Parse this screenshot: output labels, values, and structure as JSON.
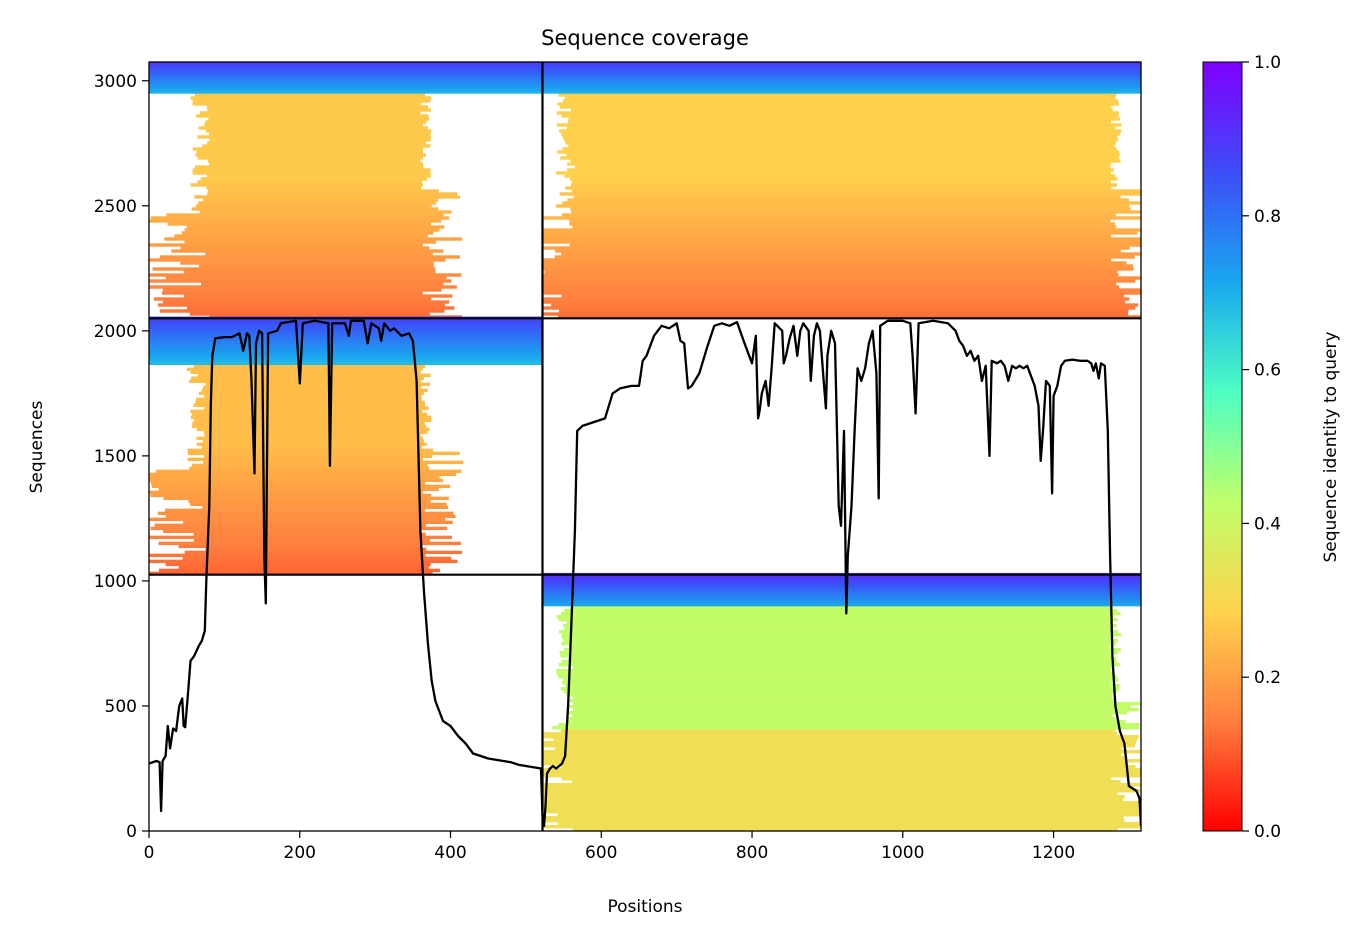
{
  "chart_data": {
    "type": "heatmap",
    "title": "Sequence coverage",
    "xlabel": "Positions",
    "ylabel": "Sequences",
    "xlim": [
      0,
      1316
    ],
    "ylim": [
      0,
      3075
    ],
    "xticks": [
      0,
      200,
      400,
      600,
      800,
      1000,
      1200
    ],
    "yticks": [
      0,
      500,
      1000,
      1500,
      2000,
      2500,
      3000
    ],
    "colorbar": {
      "label": "Sequence identity to query",
      "range": [
        0,
        1
      ],
      "ticks": [
        0.0,
        0.2,
        0.4,
        0.6,
        0.8,
        1.0
      ],
      "colormap": "rainbow_r",
      "colors": [
        "#ff0000",
        "#ff7f3f",
        "#ffd34d",
        "#bfff6b",
        "#4dffc3",
        "#19a7f0",
        "#3d4df8",
        "#7f00ff"
      ]
    },
    "chain_breaks": {
      "x": [
        522
      ],
      "y": [
        1025,
        2050
      ]
    },
    "blocks": [
      {
        "rows": [
          2050,
          3075
        ],
        "x": [
          0,
          522
        ],
        "seq_x": [
          80,
          360
        ],
        "core_identity": 0.27,
        "high_rows": [
          2950,
          3075
        ],
        "high_identity": 0.7
      },
      {
        "rows": [
          2050,
          3075
        ],
        "x": [
          522,
          1316
        ],
        "seq_x": [
          565,
          1275
        ],
        "core_identity": 0.28,
        "high_rows": [
          2950,
          3075
        ],
        "high_identity": 0.7
      },
      {
        "rows": [
          1025,
          2050
        ],
        "x": [
          0,
          522
        ],
        "seq_x": [
          75,
          360
        ],
        "core_identity": 0.25,
        "high_rows": [
          1860,
          2050
        ],
        "high_identity": 0.68
      },
      {
        "rows": [
          0,
          1025
        ],
        "x": [
          522,
          1316
        ],
        "seq_x": [
          565,
          1275
        ],
        "core_identity": 0.42,
        "high_rows": [
          900,
          1025
        ],
        "high_identity": 0.72,
        "low_rows": [
          0,
          400
        ],
        "low_identity": 0.32
      }
    ],
    "coverage_line": [
      [
        0,
        270
      ],
      [
        10,
        280
      ],
      [
        14,
        275
      ],
      [
        16,
        80
      ],
      [
        18,
        280
      ],
      [
        22,
        300
      ],
      [
        25,
        420
      ],
      [
        28,
        330
      ],
      [
        32,
        410
      ],
      [
        36,
        400
      ],
      [
        40,
        500
      ],
      [
        44,
        530
      ],
      [
        46,
        420
      ],
      [
        48,
        415
      ],
      [
        52,
        560
      ],
      [
        55,
        680
      ],
      [
        60,
        700
      ],
      [
        63,
        720
      ],
      [
        66,
        740
      ],
      [
        70,
        760
      ],
      [
        74,
        800
      ],
      [
        76,
        1000
      ],
      [
        80,
        1300
      ],
      [
        82,
        1700
      ],
      [
        84,
        1900
      ],
      [
        88,
        1970
      ],
      [
        100,
        1975
      ],
      [
        110,
        1975
      ],
      [
        120,
        1990
      ],
      [
        125,
        1920
      ],
      [
        130,
        1990
      ],
      [
        133,
        1980
      ],
      [
        136,
        1800
      ],
      [
        140,
        1430
      ],
      [
        142,
        1950
      ],
      [
        146,
        2000
      ],
      [
        150,
        1990
      ],
      [
        153,
        1100
      ],
      [
        155,
        910
      ],
      [
        158,
        1990
      ],
      [
        170,
        2000
      ],
      [
        175,
        2030
      ],
      [
        195,
        2040
      ],
      [
        200,
        1790
      ],
      [
        204,
        2030
      ],
      [
        220,
        2040
      ],
      [
        238,
        2030
      ],
      [
        240,
        1460
      ],
      [
        243,
        2030
      ],
      [
        260,
        2030
      ],
      [
        265,
        1980
      ],
      [
        268,
        2040
      ],
      [
        285,
        2040
      ],
      [
        290,
        1950
      ],
      [
        295,
        2030
      ],
      [
        305,
        2010
      ],
      [
        308,
        1960
      ],
      [
        312,
        2030
      ],
      [
        320,
        2000
      ],
      [
        325,
        2010
      ],
      [
        335,
        1980
      ],
      [
        345,
        1990
      ],
      [
        350,
        1960
      ],
      [
        352,
        1900
      ],
      [
        355,
        1800
      ],
      [
        360,
        1200
      ],
      [
        365,
        950
      ],
      [
        370,
        750
      ],
      [
        375,
        600
      ],
      [
        380,
        520
      ],
      [
        385,
        480
      ],
      [
        390,
        440
      ],
      [
        400,
        420
      ],
      [
        410,
        380
      ],
      [
        420,
        350
      ],
      [
        430,
        310
      ],
      [
        440,
        300
      ],
      [
        450,
        290
      ],
      [
        460,
        285
      ],
      [
        470,
        280
      ],
      [
        480,
        275
      ],
      [
        490,
        265
      ],
      [
        500,
        260
      ],
      [
        510,
        255
      ],
      [
        520,
        250
      ],
      [
        522,
        60
      ],
      [
        524,
        20
      ],
      [
        526,
        100
      ],
      [
        528,
        230
      ],
      [
        532,
        250
      ],
      [
        536,
        260
      ],
      [
        540,
        250
      ],
      [
        548,
        270
      ],
      [
        552,
        300
      ],
      [
        556,
        500
      ],
      [
        560,
        800
      ],
      [
        565,
        1200
      ],
      [
        568,
        1600
      ],
      [
        575,
        1620
      ],
      [
        585,
        1630
      ],
      [
        595,
        1640
      ],
      [
        605,
        1650
      ],
      [
        615,
        1750
      ],
      [
        625,
        1770
      ],
      [
        640,
        1780
      ],
      [
        650,
        1780
      ],
      [
        655,
        1880
      ],
      [
        660,
        1900
      ],
      [
        670,
        1980
      ],
      [
        680,
        2020
      ],
      [
        690,
        2010
      ],
      [
        700,
        2030
      ],
      [
        705,
        1960
      ],
      [
        710,
        1950
      ],
      [
        715,
        1770
      ],
      [
        720,
        1780
      ],
      [
        730,
        1830
      ],
      [
        740,
        1930
      ],
      [
        750,
        2020
      ],
      [
        760,
        2030
      ],
      [
        770,
        2020
      ],
      [
        780,
        2035
      ],
      [
        790,
        1950
      ],
      [
        800,
        1870
      ],
      [
        805,
        1980
      ],
      [
        808,
        1650
      ],
      [
        810,
        1680
      ],
      [
        813,
        1750
      ],
      [
        818,
        1800
      ],
      [
        822,
        1700
      ],
      [
        826,
        1850
      ],
      [
        830,
        2030
      ],
      [
        840,
        2000
      ],
      [
        842,
        1870
      ],
      [
        845,
        1900
      ],
      [
        850,
        1970
      ],
      [
        855,
        2020
      ],
      [
        860,
        1900
      ],
      [
        864,
        2000
      ],
      [
        868,
        2030
      ],
      [
        875,
        2000
      ],
      [
        878,
        1800
      ],
      [
        882,
        1980
      ],
      [
        886,
        2030
      ],
      [
        890,
        2000
      ],
      [
        895,
        1800
      ],
      [
        898,
        1690
      ],
      [
        900,
        1900
      ],
      [
        905,
        2000
      ],
      [
        910,
        1950
      ],
      [
        915,
        1300
      ],
      [
        918,
        1220
      ],
      [
        922,
        1600
      ],
      [
        925,
        870
      ],
      [
        927,
        1100
      ],
      [
        932,
        1300
      ],
      [
        936,
        1600
      ],
      [
        940,
        1850
      ],
      [
        945,
        1800
      ],
      [
        950,
        1850
      ],
      [
        955,
        1950
      ],
      [
        960,
        2000
      ],
      [
        965,
        1830
      ],
      [
        968,
        1330
      ],
      [
        970,
        2020
      ],
      [
        980,
        2040
      ],
      [
        1000,
        2040
      ],
      [
        1010,
        2030
      ],
      [
        1013,
        1900
      ],
      [
        1017,
        1670
      ],
      [
        1021,
        2030
      ],
      [
        1040,
        2040
      ],
      [
        1060,
        2030
      ],
      [
        1070,
        2000
      ],
      [
        1075,
        1960
      ],
      [
        1080,
        1940
      ],
      [
        1085,
        1900
      ],
      [
        1090,
        1920
      ],
      [
        1095,
        1880
      ],
      [
        1100,
        1900
      ],
      [
        1105,
        1800
      ],
      [
        1110,
        1860
      ],
      [
        1115,
        1500
      ],
      [
        1118,
        1880
      ],
      [
        1125,
        1870
      ],
      [
        1130,
        1880
      ],
      [
        1135,
        1860
      ],
      [
        1140,
        1800
      ],
      [
        1145,
        1860
      ],
      [
        1150,
        1850
      ],
      [
        1155,
        1860
      ],
      [
        1160,
        1850
      ],
      [
        1165,
        1860
      ],
      [
        1175,
        1780
      ],
      [
        1180,
        1700
      ],
      [
        1183,
        1480
      ],
      [
        1186,
        1600
      ],
      [
        1190,
        1800
      ],
      [
        1195,
        1780
      ],
      [
        1198,
        1350
      ],
      [
        1200,
        1740
      ],
      [
        1205,
        1780
      ],
      [
        1210,
        1860
      ],
      [
        1215,
        1880
      ],
      [
        1225,
        1885
      ],
      [
        1235,
        1880
      ],
      [
        1245,
        1880
      ],
      [
        1250,
        1870
      ],
      [
        1253,
        1840
      ],
      [
        1256,
        1870
      ],
      [
        1260,
        1810
      ],
      [
        1263,
        1870
      ],
      [
        1268,
        1860
      ],
      [
        1272,
        1600
      ],
      [
        1275,
        1100
      ],
      [
        1278,
        700
      ],
      [
        1282,
        500
      ],
      [
        1288,
        400
      ],
      [
        1294,
        350
      ],
      [
        1300,
        180
      ],
      [
        1305,
        170
      ],
      [
        1310,
        160
      ],
      [
        1314,
        130
      ],
      [
        1316,
        20
      ]
    ]
  }
}
